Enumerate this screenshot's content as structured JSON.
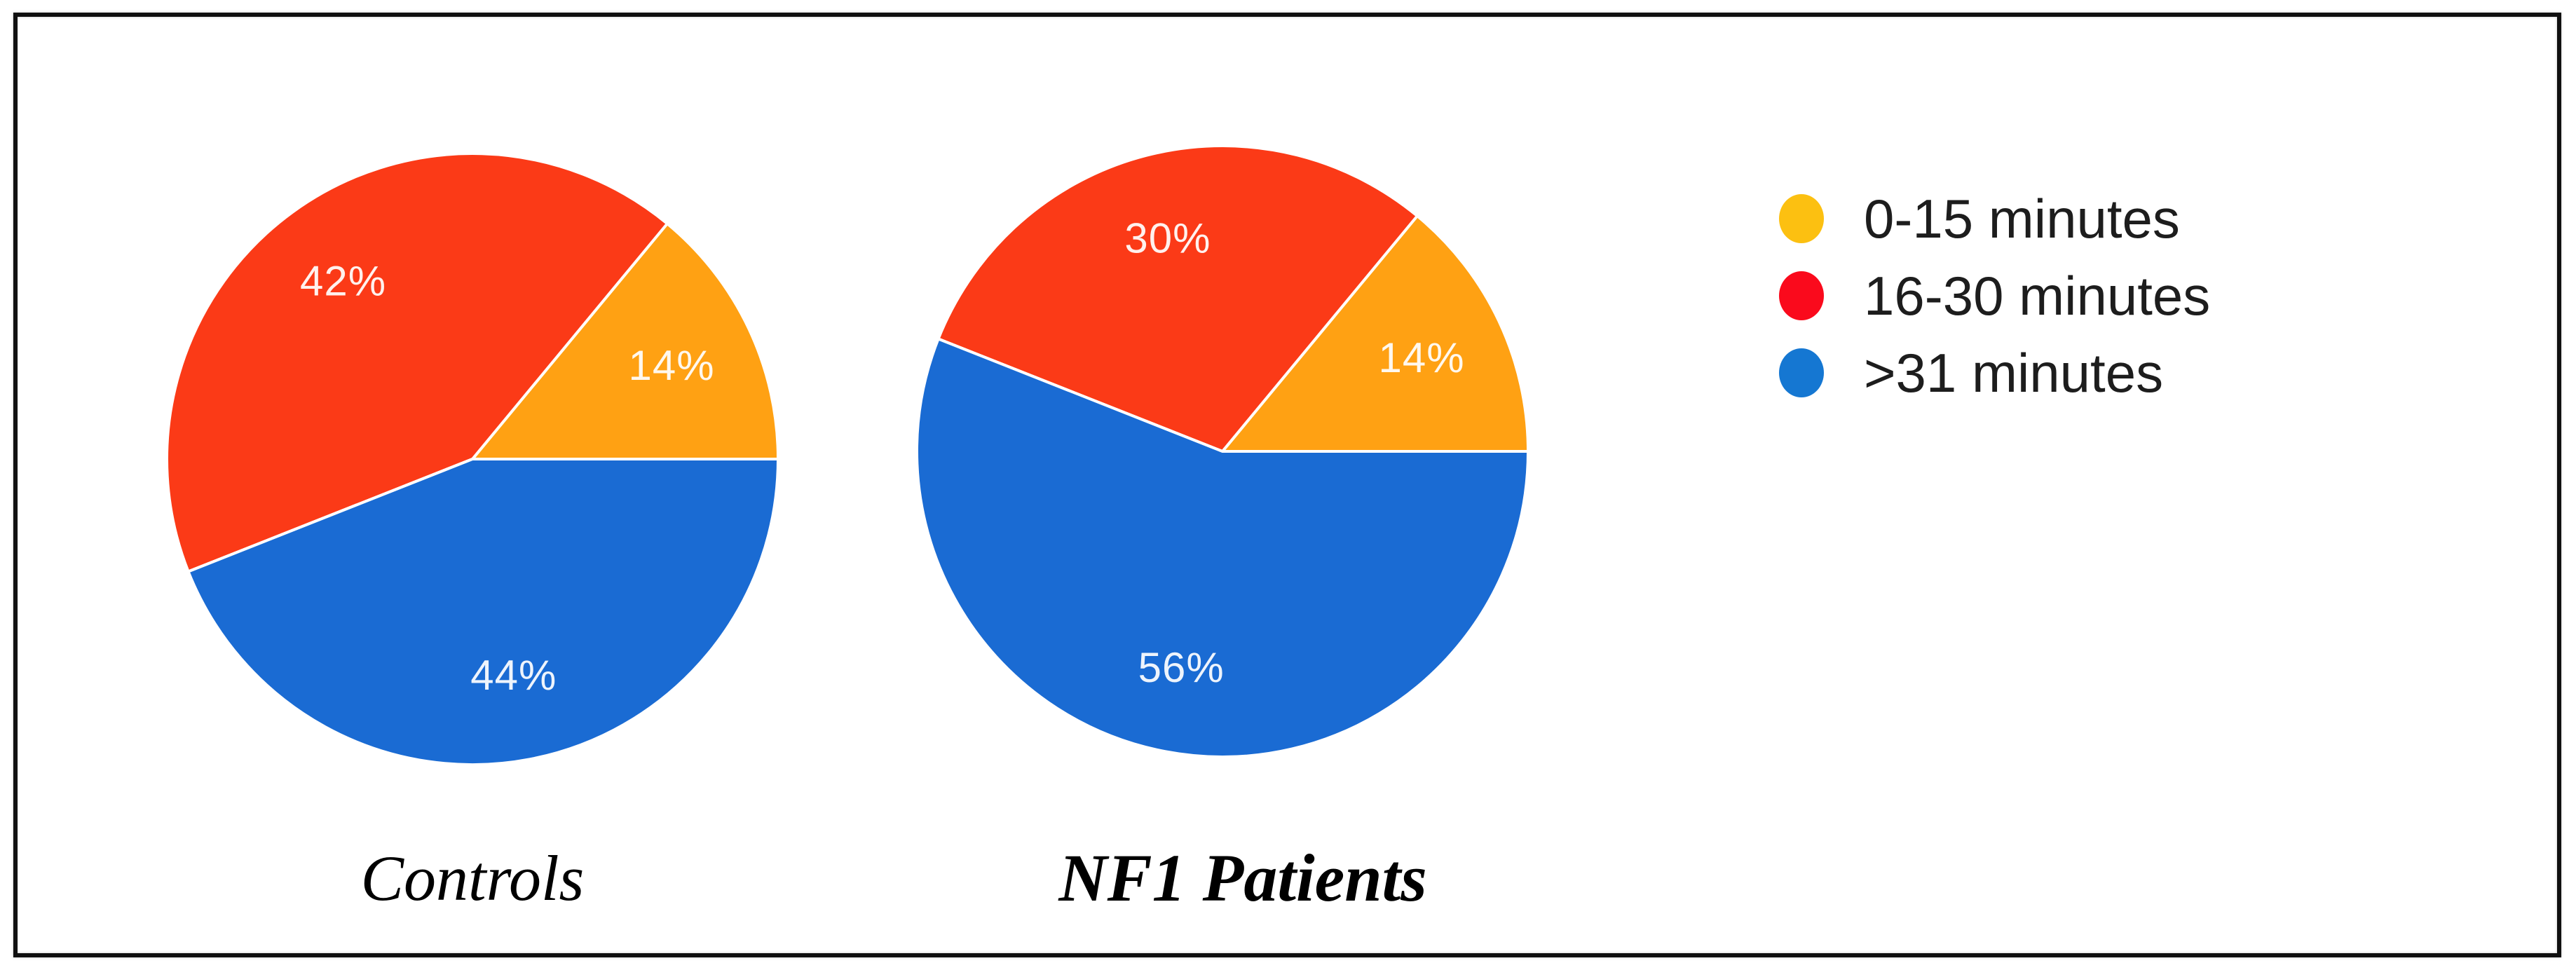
{
  "figure": {
    "background_color": "#ffffff",
    "border_color": "#101010"
  },
  "chart_data": [
    {
      "type": "pie",
      "title": "Controls",
      "title_style": "italic-serif",
      "start_angle_deg": 0,
      "direction": "counterclockwise",
      "data_labels": "percent-inside",
      "label_radius_fraction": 0.72,
      "slices": [
        {
          "label": "0-15 minutes",
          "value": 14,
          "color": "#FFA113"
        },
        {
          "label": "16-30 minutes",
          "value": 42,
          "color": "#FB3A17"
        },
        {
          "label": ">31 minutes",
          "value": 44,
          "color": "#1A6BD3"
        }
      ]
    },
    {
      "type": "pie",
      "title": "NF1 Patients",
      "title_style": "bold-italic-serif",
      "start_angle_deg": 0,
      "direction": "counterclockwise",
      "data_labels": "percent-inside",
      "label_radius_fraction": 0.72,
      "slices": [
        {
          "label": "0-15 minutes",
          "value": 14,
          "color": "#FFA113"
        },
        {
          "label": "16-30 minutes",
          "value": 30,
          "color": "#FB3A17"
        },
        {
          "label": ">31 minutes",
          "value": 56,
          "color": "#1A6BD3"
        }
      ]
    }
  ],
  "legend": {
    "position": "right",
    "text_color": "#1d1d1d",
    "items": [
      {
        "label": "0-15 minutes",
        "color": "#FCC011"
      },
      {
        "label": "16-30 minutes",
        "color": "#FA0A1C"
      },
      {
        "label": ">31 minutes",
        "color": "#1577D2"
      }
    ]
  },
  "labels": {
    "percent_suffix": "%"
  }
}
